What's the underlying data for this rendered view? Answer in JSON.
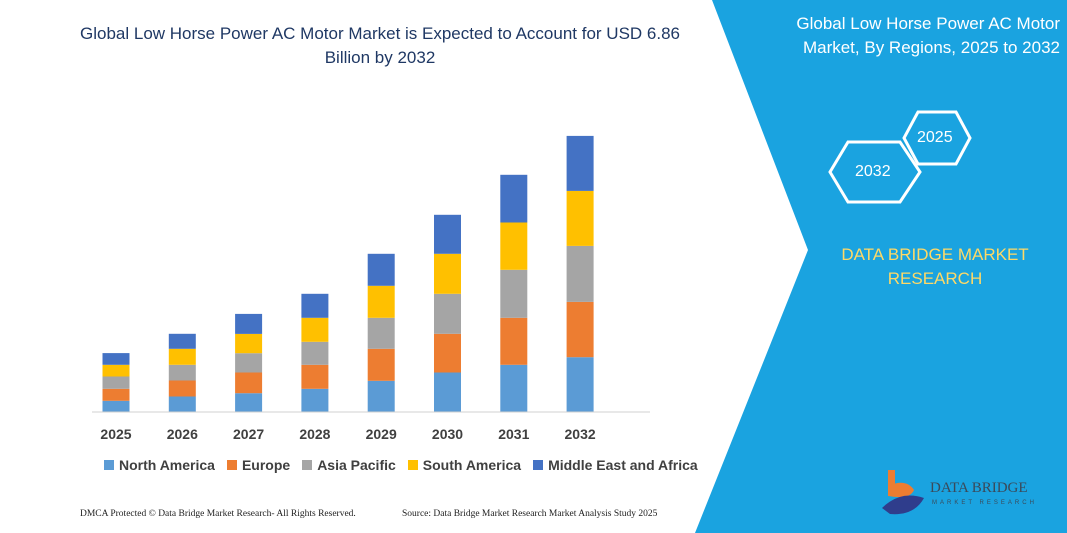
{
  "title": "Global Low Horse Power AC Motor Market is Expected to Account for USD 6.86 Billion by 2032",
  "side_panel": {
    "title": "Global Low Horse Power AC Motor Market, By Regions, 2025 to 2032",
    "hex_start": "2025",
    "hex_end": "2032",
    "brand": "DATA BRIDGE MARKET RESEARCH",
    "logo_text": "DATA BRIDGE",
    "logo_sub": "MARKET RESEARCH",
    "color": "#1aa3e0"
  },
  "footer": {
    "left": "DMCA Protected © Data Bridge Market Research- All Rights Reserved.",
    "right": "Source: Data Bridge Market Research Market Analysis Study 2025"
  },
  "chart_data": {
    "type": "bar",
    "stacked": true,
    "title": "Global Low Horse Power AC Motor Market is Expected to Account for USD 6.86 Billion by 2032",
    "categories": [
      "2025",
      "2026",
      "2027",
      "2028",
      "2029",
      "2030",
      "2031",
      "2032"
    ],
    "ylim": [
      0,
      280
    ],
    "y_axis_shown": false,
    "grid": false,
    "legend_position": "bottom",
    "series": [
      {
        "name": "North America",
        "color": "#5b9bd5",
        "values": [
          10.7,
          15,
          18.3,
          22.7,
          30.7,
          39,
          46.7,
          54.3
        ]
      },
      {
        "name": "Europe",
        "color": "#ed7d31",
        "values": [
          12,
          16,
          20.7,
          24,
          32,
          38.7,
          47,
          55.3
        ]
      },
      {
        "name": "Asia Pacific",
        "color": "#a5a5a5",
        "values": [
          12.3,
          15.7,
          19.3,
          23,
          31,
          40,
          48,
          56
        ]
      },
      {
        "name": "South America",
        "color": "#ffc000",
        "values": [
          11.7,
          16,
          19.3,
          24,
          32,
          40,
          47.3,
          55
        ]
      },
      {
        "name": "Middle East and Africa",
        "color": "#4472c4",
        "values": [
          11.7,
          15,
          20,
          24,
          32,
          39,
          47.7,
          55
        ]
      }
    ]
  }
}
